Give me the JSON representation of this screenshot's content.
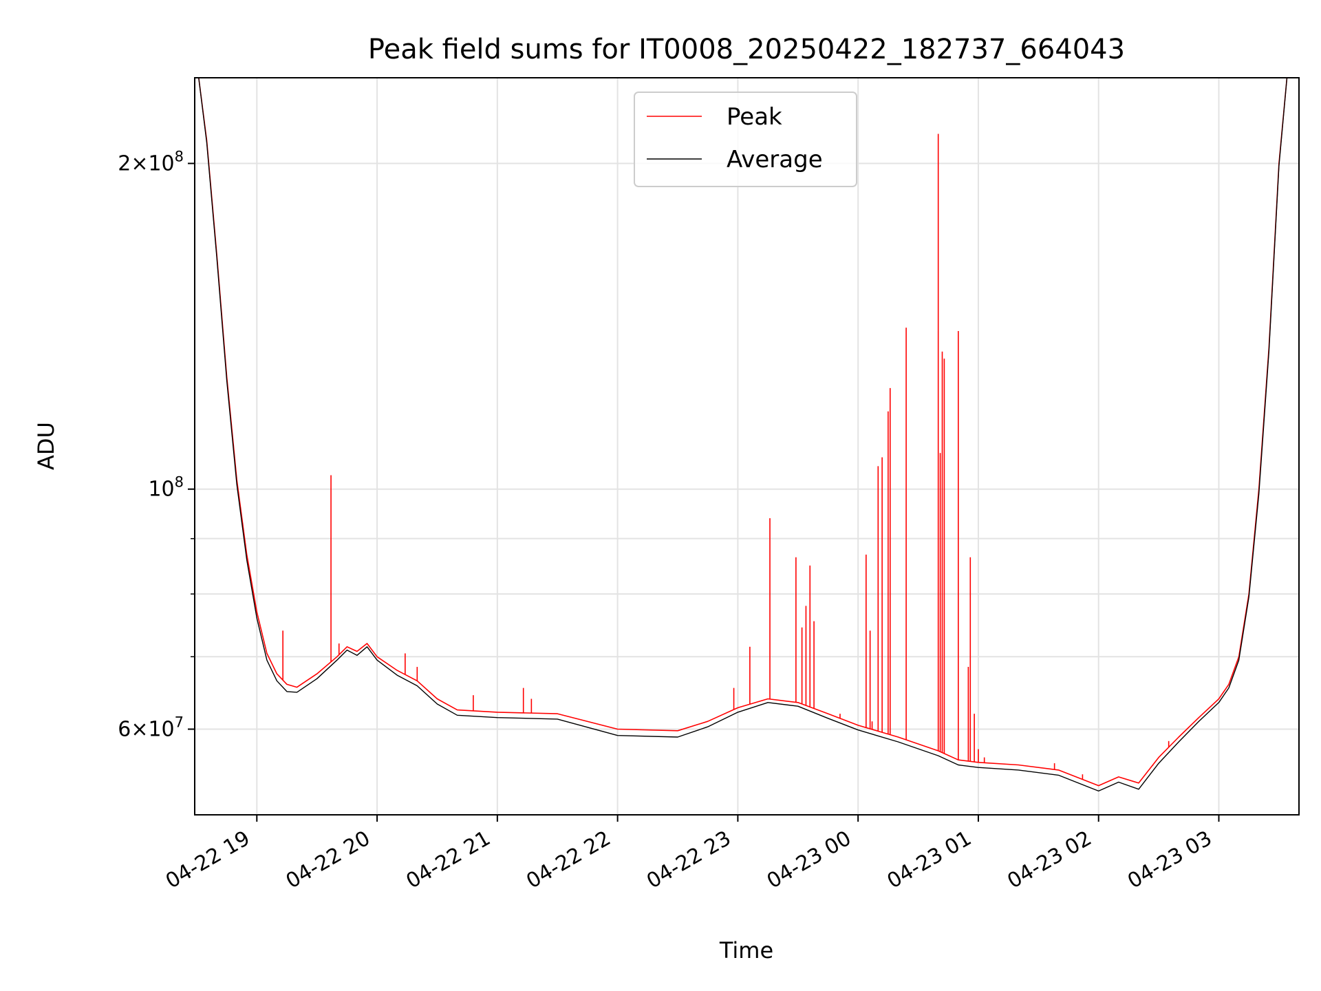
{
  "chart_data": {
    "type": "line",
    "title": "Peak field sums for IT0008_20250422_182737_664043",
    "xlabel": "Time",
    "ylabel": "ADU",
    "y_scale": "log",
    "ylim": [
      50000000,
      240000000
    ],
    "xlim": [
      "2025-04-22 18:29",
      "2025-04-23 03:40"
    ],
    "grid": true,
    "legend_position": "upper center",
    "x_ticks": [
      {
        "t": "2025-04-22 19:00",
        "label": "04-22 19"
      },
      {
        "t": "2025-04-22 20:00",
        "label": "04-22 20"
      },
      {
        "t": "2025-04-22 21:00",
        "label": "04-22 21"
      },
      {
        "t": "2025-04-22 22:00",
        "label": "04-22 22"
      },
      {
        "t": "2025-04-22 23:00",
        "label": "04-22 23"
      },
      {
        "t": "2025-04-23 00:00",
        "label": "04-23 00"
      },
      {
        "t": "2025-04-23 01:00",
        "label": "04-23 01"
      },
      {
        "t": "2025-04-23 02:00",
        "label": "04-23 02"
      },
      {
        "t": "2025-04-23 03:00",
        "label": "04-23 03"
      }
    ],
    "y_major_ticks": [
      {
        "value": 60000000,
        "mantissa": "6",
        "exponent": "7"
      },
      {
        "value": 100000000,
        "mantissa": "",
        "exponent": "8"
      },
      {
        "value": 200000000,
        "mantissa": "2",
        "exponent": "8"
      }
    ],
    "y_minor_ticks": [
      70000000,
      80000000,
      90000000
    ],
    "series": [
      {
        "name": "Peak",
        "color": "#ff0000",
        "x": [
          "2025-04-22 18:31",
          "2025-04-22 18:35",
          "2025-04-22 18:40",
          "2025-04-22 18:45",
          "2025-04-22 18:50",
          "2025-04-22 18:55",
          "2025-04-22 19:00",
          "2025-04-22 19:05",
          "2025-04-22 19:10",
          "2025-04-22 19:15",
          "2025-04-22 19:20",
          "2025-04-22 19:30",
          "2025-04-22 19:40",
          "2025-04-22 19:45",
          "2025-04-22 19:50",
          "2025-04-22 19:55",
          "2025-04-22 20:00",
          "2025-04-22 20:10",
          "2025-04-22 20:20",
          "2025-04-22 20:30",
          "2025-04-22 20:40",
          "2025-04-22 21:00",
          "2025-04-22 21:30",
          "2025-04-22 22:00",
          "2025-04-22 22:30",
          "2025-04-22 22:45",
          "2025-04-22 23:00",
          "2025-04-22 23:15",
          "2025-04-22 23:30",
          "2025-04-22 23:45",
          "2025-04-23 00:00",
          "2025-04-23 00:20",
          "2025-04-23 00:40",
          "2025-04-23 00:50",
          "2025-04-23 01:00",
          "2025-04-23 01:20",
          "2025-04-23 01:40",
          "2025-04-23 02:00",
          "2025-04-23 02:10",
          "2025-04-23 02:20",
          "2025-04-23 02:30",
          "2025-04-23 02:40",
          "2025-04-23 02:50",
          "2025-04-23 03:00",
          "2025-04-23 03:05",
          "2025-04-23 03:10",
          "2025-04-23 03:15",
          "2025-04-23 03:20",
          "2025-04-23 03:25",
          "2025-04-23 03:30",
          "2025-04-23 03:34"
        ],
        "values": [
          240000000,
          210000000,
          165000000,
          127000000,
          102000000,
          87000000,
          77000000,
          70500000,
          67500000,
          66000000,
          65600000,
          67500000,
          70000000,
          71500000,
          70800000,
          72000000,
          70000000,
          68000000,
          66500000,
          64000000,
          62500000,
          62200000,
          62000000,
          60000000,
          59800000,
          61000000,
          62800000,
          64000000,
          63500000,
          62000000,
          60500000,
          59000000,
          57300000,
          56200000,
          55900000,
          55600000,
          55000000,
          53200000,
          54200000,
          53500000,
          56500000,
          59000000,
          61500000,
          64000000,
          66000000,
          70000000,
          80000000,
          100000000,
          135000000,
          200000000,
          240000000
        ]
      },
      {
        "name": "Average",
        "color": "#000000",
        "x": [
          "2025-04-22 18:31",
          "2025-04-22 18:35",
          "2025-04-22 18:40",
          "2025-04-22 18:45",
          "2025-04-22 18:50",
          "2025-04-22 18:55",
          "2025-04-22 19:00",
          "2025-04-22 19:05",
          "2025-04-22 19:10",
          "2025-04-22 19:15",
          "2025-04-22 19:20",
          "2025-04-22 19:30",
          "2025-04-22 19:40",
          "2025-04-22 19:45",
          "2025-04-22 19:50",
          "2025-04-22 19:55",
          "2025-04-22 20:00",
          "2025-04-22 20:10",
          "2025-04-22 20:20",
          "2025-04-22 20:30",
          "2025-04-22 20:40",
          "2025-04-22 21:00",
          "2025-04-22 21:30",
          "2025-04-22 22:00",
          "2025-04-22 22:30",
          "2025-04-22 22:45",
          "2025-04-22 23:00",
          "2025-04-22 23:15",
          "2025-04-22 23:30",
          "2025-04-22 23:45",
          "2025-04-23 00:00",
          "2025-04-23 00:20",
          "2025-04-23 00:40",
          "2025-04-23 00:50",
          "2025-04-23 01:00",
          "2025-04-23 01:20",
          "2025-04-23 01:40",
          "2025-04-23 02:00",
          "2025-04-23 02:10",
          "2025-04-23 02:20",
          "2025-04-23 02:30",
          "2025-04-23 02:40",
          "2025-04-23 02:50",
          "2025-04-23 03:00",
          "2025-04-23 03:05",
          "2025-04-23 03:10",
          "2025-04-23 03:15",
          "2025-04-23 03:20",
          "2025-04-23 03:25",
          "2025-04-23 03:30",
          "2025-04-23 03:34"
        ],
        "values": [
          240000000,
          209000000,
          164000000,
          126000000,
          101000000,
          86000000,
          76000000,
          69500000,
          66500000,
          65000000,
          64900000,
          66800000,
          69500000,
          71000000,
          70200000,
          71500000,
          69500000,
          67300000,
          65800000,
          63300000,
          61800000,
          61500000,
          61300000,
          59200000,
          59000000,
          60300000,
          62200000,
          63500000,
          63000000,
          61400000,
          59900000,
          58400000,
          56700000,
          55600000,
          55300000,
          55000000,
          54400000,
          52600000,
          53600000,
          52800000,
          55800000,
          58400000,
          61000000,
          63500000,
          65500000,
          69500000,
          79500000,
          99000000,
          134000000,
          199000000,
          240000000
        ]
      }
    ],
    "peak_spikes": [
      {
        "x": "2025-04-22 19:13",
        "y": 74000000
      },
      {
        "x": "2025-04-22 19:37",
        "y": 103000000
      },
      {
        "x": "2025-04-22 19:41",
        "y": 72000000
      },
      {
        "x": "2025-04-22 20:14",
        "y": 70500000
      },
      {
        "x": "2025-04-22 20:20",
        "y": 68500000
      },
      {
        "x": "2025-04-22 20:48",
        "y": 64500000
      },
      {
        "x": "2025-04-22 21:13",
        "y": 65500000
      },
      {
        "x": "2025-04-22 21:17",
        "y": 64000000
      },
      {
        "x": "2025-04-22 22:58",
        "y": 65500000
      },
      {
        "x": "2025-04-22 23:06",
        "y": 71500000
      },
      {
        "x": "2025-04-22 23:16",
        "y": 94000000
      },
      {
        "x": "2025-04-22 23:29",
        "y": 86500000
      },
      {
        "x": "2025-04-22 23:32",
        "y": 74500000
      },
      {
        "x": "2025-04-22 23:34",
        "y": 78000000
      },
      {
        "x": "2025-04-22 23:36",
        "y": 85000000
      },
      {
        "x": "2025-04-22 23:38",
        "y": 75500000
      },
      {
        "x": "2025-04-22 23:51",
        "y": 62000000
      },
      {
        "x": "2025-04-23 00:04",
        "y": 87000000
      },
      {
        "x": "2025-04-23 00:06",
        "y": 74000000
      },
      {
        "x": "2025-04-23 00:07",
        "y": 61000000
      },
      {
        "x": "2025-04-23 00:10",
        "y": 105000000
      },
      {
        "x": "2025-04-23 00:12",
        "y": 107000000
      },
      {
        "x": "2025-04-23 00:15",
        "y": 118000000
      },
      {
        "x": "2025-04-23 00:16",
        "y": 124000000
      },
      {
        "x": "2025-04-23 00:24",
        "y": 141000000
      },
      {
        "x": "2025-04-23 00:40",
        "y": 213000000
      },
      {
        "x": "2025-04-23 00:41",
        "y": 108000000
      },
      {
        "x": "2025-04-23 00:42",
        "y": 134000000
      },
      {
        "x": "2025-04-23 00:43",
        "y": 132000000
      },
      {
        "x": "2025-04-23 00:50",
        "y": 140000000
      },
      {
        "x": "2025-04-23 00:55",
        "y": 68500000
      },
      {
        "x": "2025-04-23 00:56",
        "y": 86500000
      },
      {
        "x": "2025-04-23 00:58",
        "y": 62000000
      },
      {
        "x": "2025-04-23 01:00",
        "y": 57500000
      },
      {
        "x": "2025-04-23 01:03",
        "y": 56500000
      },
      {
        "x": "2025-04-23 01:38",
        "y": 55800000
      },
      {
        "x": "2025-04-23 01:52",
        "y": 54500000
      },
      {
        "x": "2025-04-23 02:27",
        "y": 55500000
      },
      {
        "x": "2025-04-23 02:35",
        "y": 58500000
      }
    ]
  }
}
